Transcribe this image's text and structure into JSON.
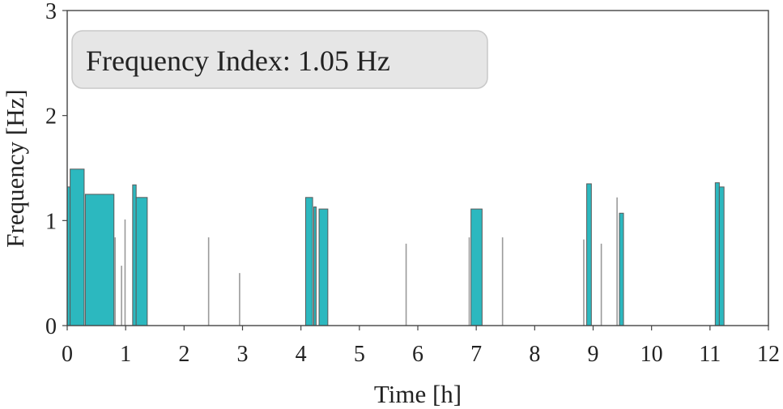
{
  "chart_data": {
    "type": "bar",
    "xlabel": "Time [h]",
    "ylabel": "Frequency [Hz]",
    "xlim": [
      0,
      12
    ],
    "ylim": [
      0,
      3
    ],
    "xticks": [
      0,
      1,
      2,
      3,
      4,
      5,
      6,
      7,
      8,
      9,
      10,
      11,
      12
    ],
    "yticks": [
      0,
      1,
      2,
      3
    ],
    "grid": false,
    "annotation": {
      "text": "Frequency Index: 1.05 Hz",
      "placement": "top-left"
    },
    "series": [
      {
        "style": "wide-bar",
        "color": "#2cb8bf",
        "bars": [
          {
            "x0": 0.0,
            "x1": 0.05,
            "value": 1.32
          },
          {
            "x0": 0.05,
            "x1": 0.29,
            "value": 1.49
          },
          {
            "x0": 0.31,
            "x1": 0.8,
            "value": 1.25
          },
          {
            "x0": 1.12,
            "x1": 1.18,
            "value": 1.34
          },
          {
            "x0": 1.18,
            "x1": 1.37,
            "value": 1.22
          },
          {
            "x0": 4.08,
            "x1": 4.2,
            "value": 1.22
          },
          {
            "x0": 4.22,
            "x1": 4.26,
            "value": 1.13
          },
          {
            "x0": 4.31,
            "x1": 4.46,
            "value": 1.11
          },
          {
            "x0": 6.91,
            "x1": 7.1,
            "value": 1.11
          },
          {
            "x0": 8.89,
            "x1": 8.97,
            "value": 1.35
          },
          {
            "x0": 9.45,
            "x1": 9.52,
            "value": 1.07
          },
          {
            "x0": 11.09,
            "x1": 11.16,
            "value": 1.36
          },
          {
            "x0": 11.16,
            "x1": 11.24,
            "value": 1.32
          }
        ]
      },
      {
        "style": "thin-line",
        "color": "#9a9a9a",
        "bars": [
          {
            "x": 0.82,
            "value": 0.84
          },
          {
            "x": 0.93,
            "value": 0.57
          },
          {
            "x": 0.99,
            "value": 1.01
          },
          {
            "x": 2.42,
            "value": 0.84
          },
          {
            "x": 2.95,
            "value": 0.5
          },
          {
            "x": 5.8,
            "value": 0.78
          },
          {
            "x": 6.88,
            "value": 0.84
          },
          {
            "x": 7.45,
            "value": 0.84
          },
          {
            "x": 8.84,
            "value": 0.82
          },
          {
            "x": 9.14,
            "value": 0.78
          },
          {
            "x": 9.41,
            "value": 1.22
          }
        ]
      }
    ]
  }
}
